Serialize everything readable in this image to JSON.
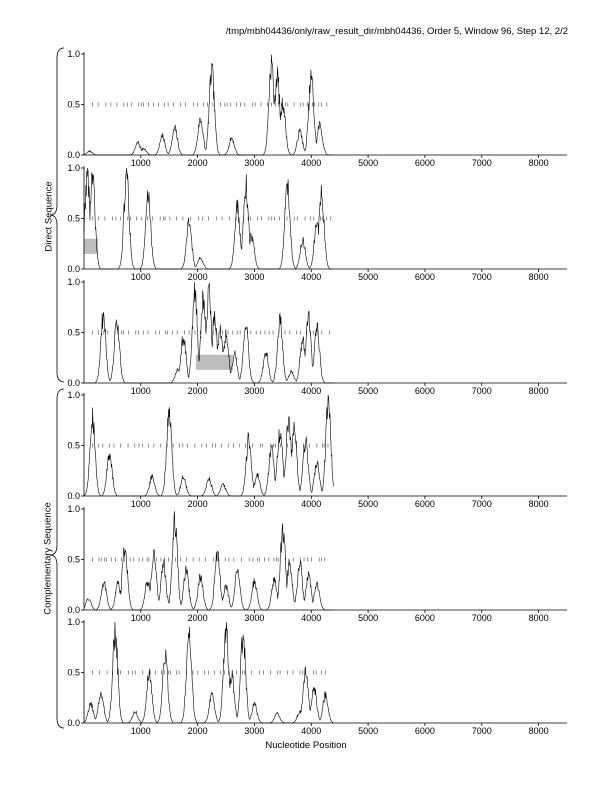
{
  "header": {
    "title": "/tmp/mbh04436/only/raw_result_dir/mbh04436, Order 5, Window 96, Step 12, 2/2"
  },
  "labels": {
    "direct": "Direct Sequence",
    "complementary": "Complementary Sequence",
    "xaxis": "Nucleotide Position"
  },
  "colors": {
    "line": "#000000",
    "highlight": "#bdbdbd",
    "ticks": "#444444"
  },
  "chart_data": [
    {
      "type": "line",
      "group": "Direct Sequence",
      "frame": 1,
      "xlim": [
        1,
        8500
      ],
      "ylim": [
        0,
        1
      ],
      "yticks": [
        "0.0",
        "0.5",
        "1.0"
      ],
      "xticks": [
        "1000",
        "2000",
        "3000",
        "4000",
        "5000",
        "6000",
        "7000",
        "8000"
      ],
      "marker_row_y": 0.5,
      "marker_range": [
        150,
        4350
      ],
      "highlight": null,
      "peaks": [
        [
          100,
          0.04
        ],
        [
          950,
          0.13
        ],
        [
          1050,
          0.07
        ],
        [
          1380,
          0.2
        ],
        [
          1600,
          0.28
        ],
        [
          2050,
          0.38
        ],
        [
          2250,
          0.88
        ],
        [
          2600,
          0.18
        ],
        [
          3300,
          0.98
        ],
        [
          3400,
          0.85
        ],
        [
          3500,
          0.55
        ],
        [
          3800,
          0.25
        ],
        [
          4000,
          0.82
        ],
        [
          4150,
          0.32
        ]
      ]
    },
    {
      "type": "line",
      "group": "Direct Sequence",
      "frame": 2,
      "xlim": [
        1,
        8500
      ],
      "ylim": [
        0,
        1
      ],
      "yticks": [
        "0.0",
        "0.5",
        "1.0"
      ],
      "xticks": [
        "1000",
        "2000",
        "3000",
        "4000",
        "5000",
        "6000",
        "7000",
        "8000"
      ],
      "marker_row_y": 0.5,
      "marker_range": [
        150,
        4350
      ],
      "highlight": {
        "x": [
          1,
          250
        ],
        "y": [
          0.15,
          0.3
        ]
      },
      "peaks": [
        [
          60,
          1.0
        ],
        [
          150,
          0.95
        ],
        [
          750,
          1.0
        ],
        [
          1130,
          0.78
        ],
        [
          1850,
          0.5
        ],
        [
          2050,
          0.12
        ],
        [
          2700,
          0.65
        ],
        [
          2850,
          0.88
        ],
        [
          2950,
          0.35
        ],
        [
          3580,
          0.92
        ],
        [
          3850,
          0.3
        ],
        [
          4100,
          0.5
        ],
        [
          4180,
          0.78
        ]
      ]
    },
    {
      "type": "line",
      "group": "Direct Sequence",
      "frame": 3,
      "xlim": [
        1,
        8500
      ],
      "ylim": [
        0,
        1
      ],
      "yticks": [
        "0.0",
        "0.5",
        "1.0"
      ],
      "xticks": [
        "1000",
        "2000",
        "3000",
        "4000",
        "5000",
        "6000",
        "7000",
        "8000"
      ],
      "marker_row_y": 0.5,
      "marker_range": [
        150,
        4350
      ],
      "highlight": {
        "x": [
          1970,
          2620
        ],
        "y": [
          0.13,
          0.28
        ]
      },
      "peaks": [
        [
          340,
          0.7
        ],
        [
          580,
          0.64
        ],
        [
          1650,
          0.14
        ],
        [
          1750,
          0.48
        ],
        [
          1950,
          0.95
        ],
        [
          2100,
          0.88
        ],
        [
          2200,
          0.98
        ],
        [
          2300,
          0.7
        ],
        [
          2400,
          0.55
        ],
        [
          2500,
          0.5
        ],
        [
          2650,
          0.3
        ],
        [
          2850,
          0.58
        ],
        [
          3200,
          0.32
        ],
        [
          3450,
          0.66
        ],
        [
          3650,
          0.12
        ],
        [
          3850,
          0.45
        ],
        [
          3950,
          0.7
        ],
        [
          4100,
          0.6
        ]
      ]
    },
    {
      "type": "line",
      "group": "Complementary Sequence",
      "frame": 1,
      "xlim": [
        1,
        8500
      ],
      "ylim": [
        0,
        1
      ],
      "yticks": [
        "0.0",
        "0.5",
        "1.0"
      ],
      "xticks": [
        "1000",
        "2000",
        "3000",
        "4000",
        "5000",
        "6000",
        "7000",
        "8000"
      ],
      "marker_row_y": 0.5,
      "marker_range": [
        150,
        4350
      ],
      "highlight": null,
      "peaks": [
        [
          150,
          0.85
        ],
        [
          450,
          0.45
        ],
        [
          1200,
          0.2
        ],
        [
          1500,
          0.9
        ],
        [
          1750,
          0.2
        ],
        [
          2200,
          0.18
        ],
        [
          2450,
          0.12
        ],
        [
          2900,
          0.6
        ],
        [
          3050,
          0.22
        ],
        [
          3300,
          0.5
        ],
        [
          3450,
          0.68
        ],
        [
          3600,
          0.8
        ],
        [
          3700,
          0.72
        ],
        [
          3900,
          0.58
        ],
        [
          4100,
          0.35
        ],
        [
          4300,
          0.98
        ]
      ]
    },
    {
      "type": "line",
      "group": "Complementary Sequence",
      "frame": 2,
      "xlim": [
        1,
        8500
      ],
      "ylim": [
        0,
        1
      ],
      "yticks": [
        "0.0",
        "0.5",
        "1.0"
      ],
      "xticks": [
        "1000",
        "2000",
        "3000",
        "4000",
        "5000",
        "6000",
        "7000",
        "8000"
      ],
      "marker_row_y": 0.5,
      "marker_range": [
        150,
        4350
      ],
      "highlight": null,
      "peaks": [
        [
          80,
          0.12
        ],
        [
          350,
          0.3
        ],
        [
          600,
          0.28
        ],
        [
          720,
          0.68
        ],
        [
          1120,
          0.3
        ],
        [
          1230,
          0.6
        ],
        [
          1400,
          0.48
        ],
        [
          1600,
          0.95
        ],
        [
          1800,
          0.42
        ],
        [
          2050,
          0.35
        ],
        [
          2350,
          0.62
        ],
        [
          2500,
          0.25
        ],
        [
          2700,
          0.4
        ],
        [
          3000,
          0.3
        ],
        [
          3350,
          0.32
        ],
        [
          3500,
          0.84
        ],
        [
          3620,
          0.5
        ],
        [
          3800,
          0.48
        ],
        [
          3950,
          0.36
        ],
        [
          4100,
          0.28
        ]
      ]
    },
    {
      "type": "line",
      "group": "Complementary Sequence",
      "frame": 3,
      "xlim": [
        1,
        8500
      ],
      "ylim": [
        0,
        1
      ],
      "yticks": [
        "0.0",
        "0.5",
        "1.0"
      ],
      "xticks": [
        "1000",
        "2000",
        "3000",
        "4000",
        "5000",
        "6000",
        "7000",
        "8000"
      ],
      "marker_row_y": 0.5,
      "marker_range": [
        150,
        4350
      ],
      "highlight": null,
      "peaks": [
        [
          120,
          0.2
        ],
        [
          300,
          0.32
        ],
        [
          550,
          0.96
        ],
        [
          900,
          0.12
        ],
        [
          1150,
          0.55
        ],
        [
          1430,
          0.7
        ],
        [
          1850,
          0.98
        ],
        [
          2250,
          0.3
        ],
        [
          2500,
          0.98
        ],
        [
          2600,
          0.5
        ],
        [
          2800,
          0.92
        ],
        [
          3000,
          0.2
        ],
        [
          3400,
          0.1
        ],
        [
          3800,
          0.12
        ],
        [
          3900,
          0.55
        ],
        [
          4050,
          0.36
        ],
        [
          4250,
          0.3
        ]
      ]
    }
  ]
}
